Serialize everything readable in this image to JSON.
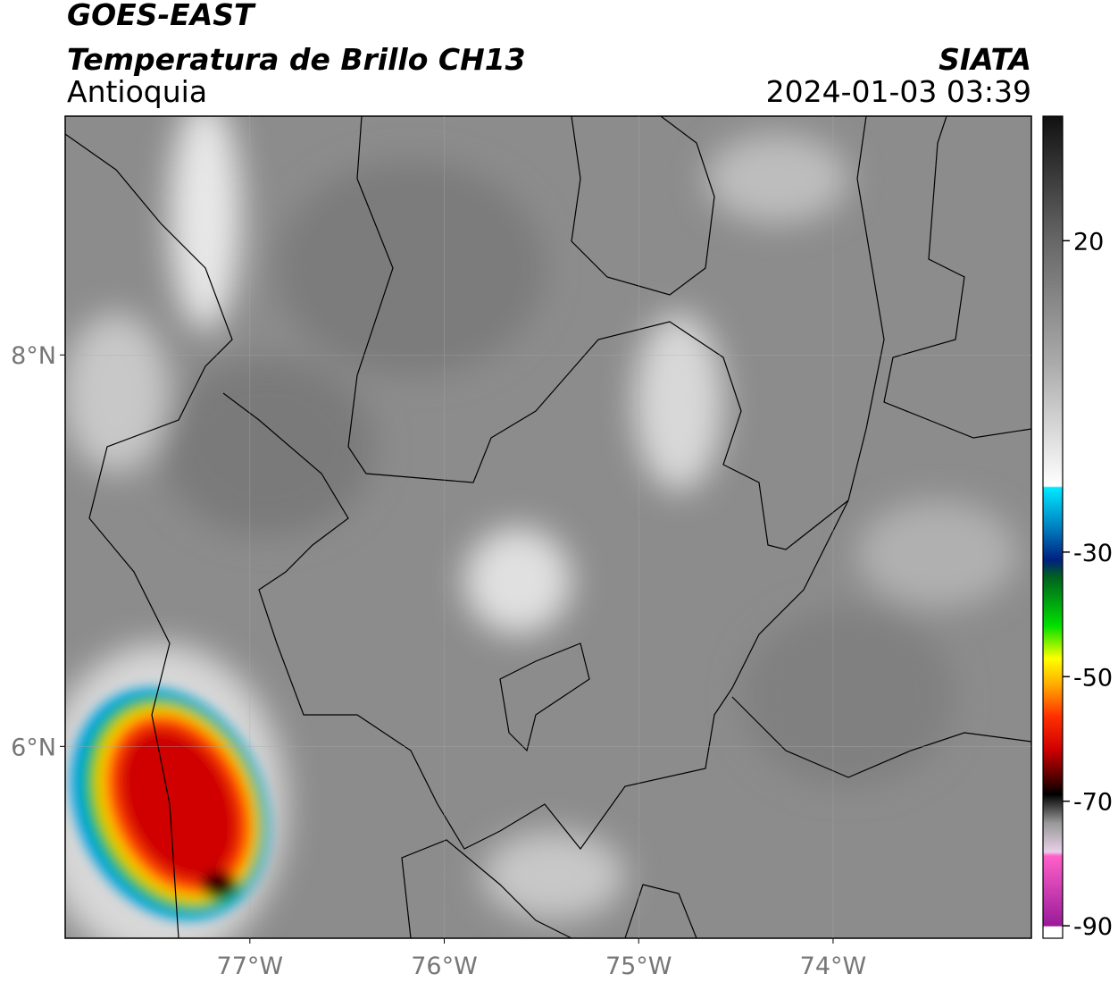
{
  "header": {
    "title": "GOES-EAST",
    "subtitle": "Temperatura de Brillo CH13",
    "region": "Antioquia",
    "source": "SIATA",
    "datetime": "2024-01-03 03:39"
  },
  "map": {
    "xlim": [
      -77.95,
      -72.98
    ],
    "ylim": [
      5.02,
      9.22
    ],
    "xticks": [
      {
        "value": -77,
        "label": "77°W"
      },
      {
        "value": -76,
        "label": "76°W"
      },
      {
        "value": -75,
        "label": "75°W"
      },
      {
        "value": -74,
        "label": "74°W"
      }
    ],
    "yticks": [
      {
        "value": 8,
        "label": "8°N"
      },
      {
        "value": 6,
        "label": "6°N"
      }
    ]
  },
  "colorbar": {
    "lim": [
      -92,
      40
    ],
    "ticks": [
      20,
      -30,
      -50,
      -70,
      -90
    ]
  }
}
